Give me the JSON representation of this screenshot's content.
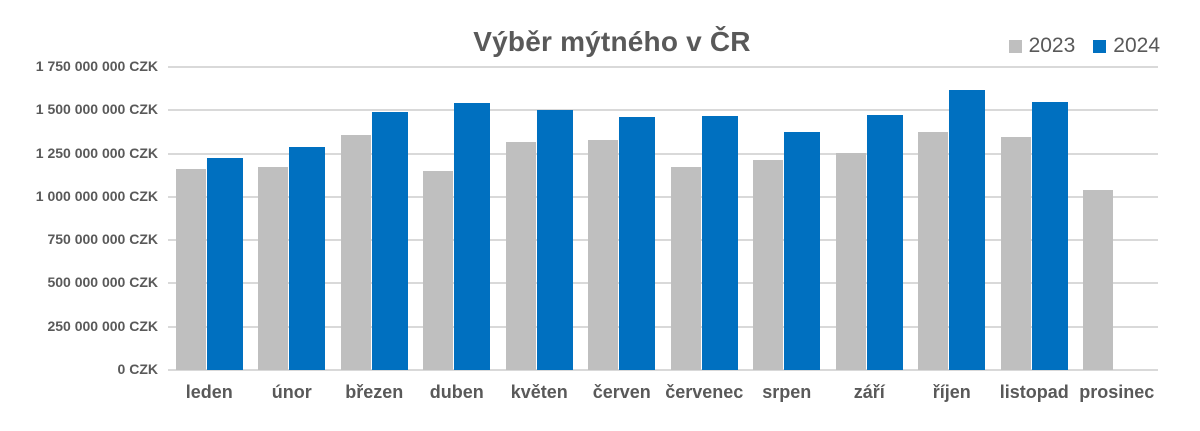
{
  "title": "Výběr mýtného v ČR",
  "legend": {
    "items": [
      {
        "label": "2023",
        "color": "#BFBFBF"
      },
      {
        "label": "2024",
        "color": "#0070C0"
      }
    ],
    "position": "top-right"
  },
  "colors": {
    "series_2023": "#BFBFBF",
    "series_2024": "#0070C0",
    "gridline": "#D9D9D9",
    "text": "#595959",
    "background": "#FFFFFF"
  },
  "chart_data": {
    "type": "bar",
    "title": "Výběr mýtného v ČR",
    "unit": "CZK",
    "categories": [
      "leden",
      "únor",
      "březen",
      "duben",
      "květen",
      "červen",
      "červenec",
      "srpen",
      "září",
      "říjen",
      "listopad",
      "prosinec"
    ],
    "series": [
      {
        "name": "2023",
        "color": "#BFBFBF",
        "values": [
          1160000000,
          1170000000,
          1355000000,
          1150000000,
          1315000000,
          1330000000,
          1175000000,
          1215000000,
          1255000000,
          1375000000,
          1345000000,
          1040000000
        ]
      },
      {
        "name": "2024",
        "color": "#0070C0",
        "values": [
          1225000000,
          1290000000,
          1490000000,
          1540000000,
          1500000000,
          1460000000,
          1465000000,
          1375000000,
          1470000000,
          1615000000,
          1545000000,
          null
        ]
      }
    ],
    "y_axis": {
      "min": 0,
      "max": 1750000000,
      "tick_step": 250000000,
      "tick_labels_bottom_to_top": [
        "0 CZK",
        "250 000 000 CZK",
        "500 000 000 CZK",
        "750 000 000 CZK",
        "1 000 000 000 CZK",
        "1 250 000 000 CZK",
        "1 500 000 000 CZK",
        "1 750 000 000 CZK"
      ]
    },
    "x_axis": {
      "label": "",
      "tick_labels": [
        "leden",
        "únor",
        "březen",
        "duben",
        "květen",
        "červen",
        "červenec",
        "srpen",
        "září",
        "říjen",
        "listopad",
        "prosinec"
      ]
    },
    "grid": true,
    "legend_position": "top-right"
  }
}
